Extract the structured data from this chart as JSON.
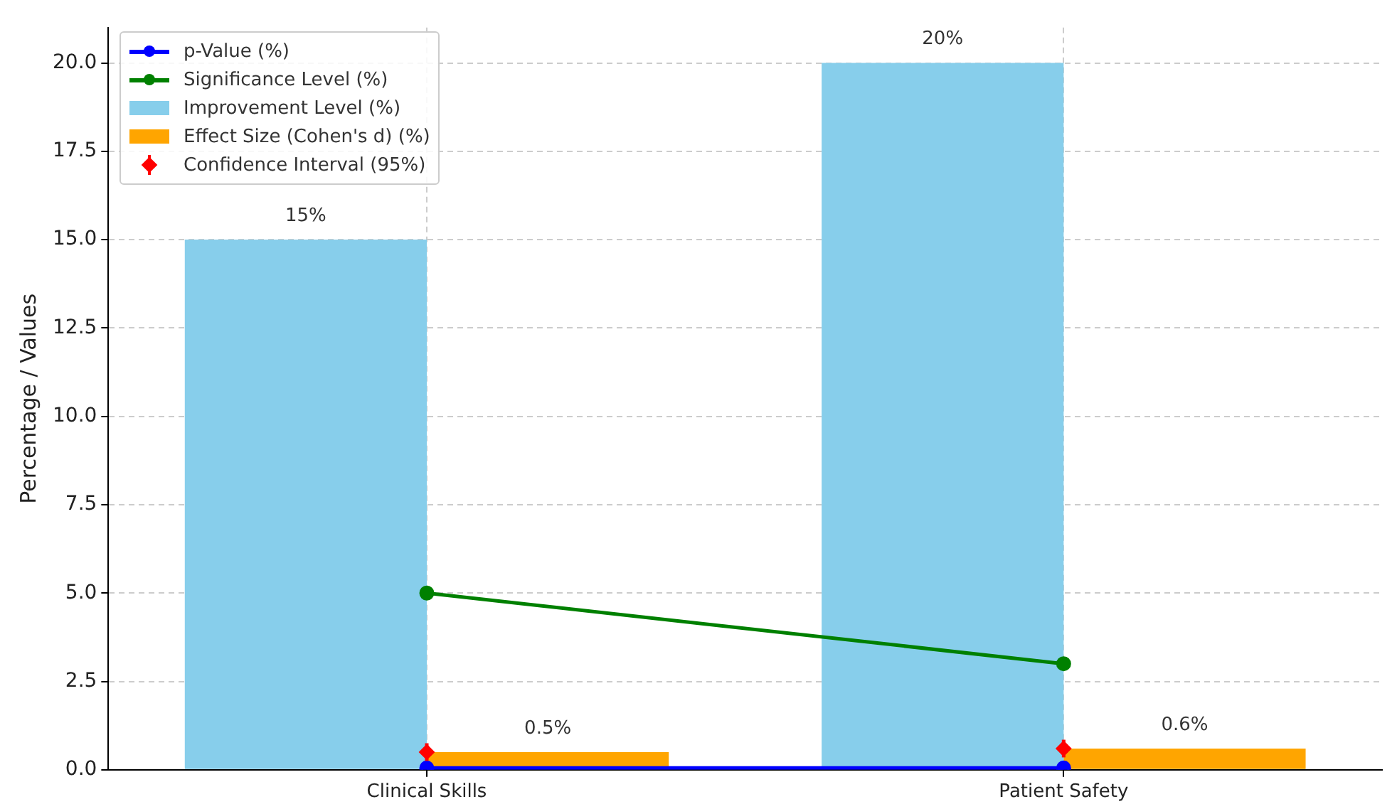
{
  "chart_data": {
    "type": "bar",
    "categories": [
      "Clinical Skills",
      "Patient Safety"
    ],
    "ylabel": "Percentage / Values",
    "series": [
      {
        "name": "p-Value (%)",
        "type": "line",
        "color": "#0000ff",
        "values": [
          0.05,
          0.05
        ],
        "marker": "circle"
      },
      {
        "name": "Significance Level (%)",
        "type": "line",
        "color": "#008000",
        "values": [
          5,
          3
        ],
        "marker": "circle"
      },
      {
        "name": "Improvement Level (%)",
        "color": "#87ceeb",
        "values": [
          15,
          20
        ],
        "value_labels": [
          "15%",
          "20%"
        ]
      },
      {
        "name": "Effect Size (Cohen's d) (%)",
        "color": "#ffa500",
        "values": [
          0.5,
          0.6
        ],
        "value_labels": [
          "0.5%",
          "0.6%"
        ]
      },
      {
        "name": "Confidence Interval (95%)",
        "type": "scatter",
        "color": "#ff0000",
        "values": [
          0.5,
          0.6
        ],
        "errors": [
          0.25,
          0.25
        ],
        "marker": "diamond"
      }
    ],
    "ylim": [
      0,
      21
    ],
    "yticks": [
      {
        "value": 0,
        "label": "0.0"
      },
      {
        "value": 2.5,
        "label": "2.5"
      },
      {
        "value": 5,
        "label": "5.0"
      },
      {
        "value": 7.5,
        "label": "7.5"
      },
      {
        "value": 10,
        "label": "10.0"
      },
      {
        "value": 12.5,
        "label": "12.5"
      },
      {
        "value": 15,
        "label": "15.0"
      },
      {
        "value": 17.5,
        "label": "17.5"
      },
      {
        "value": 20,
        "label": "20.0"
      }
    ],
    "grid": true,
    "legend": "top left"
  }
}
